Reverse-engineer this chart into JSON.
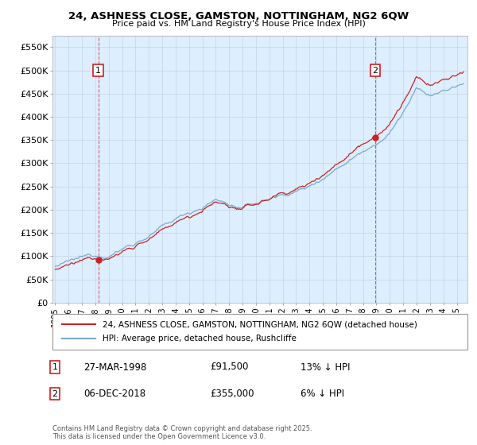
{
  "title1": "24, ASHNESS CLOSE, GAMSTON, NOTTINGHAM, NG2 6QW",
  "title2": "Price paid vs. HM Land Registry's House Price Index (HPI)",
  "sale_year1": 1998.23,
  "sale_year2": 2018.92,
  "sale_price1": 91500,
  "sale_price2": 355000,
  "red_color": "#cc2222",
  "blue_color": "#7aaacc",
  "marker_box_color": "#cc2222",
  "grid_color": "#c8d8e8",
  "plot_bg": "#ddeeff",
  "ylim": [
    0,
    575000
  ],
  "yticks": [
    0,
    50000,
    100000,
    150000,
    200000,
    250000,
    300000,
    350000,
    400000,
    450000,
    500000,
    550000
  ],
  "xlim_start": 1994.8,
  "xlim_end": 2025.8,
  "legend_entry1": "24, ASHNESS CLOSE, GAMSTON, NOTTINGHAM, NG2 6QW (detached house)",
  "legend_entry2": "HPI: Average price, detached house, Rushcliffe",
  "annotation1_label": "1",
  "annotation1_date": "27-MAR-1998",
  "annotation1_price": "£91,500",
  "annotation1_hpi": "13% ↓ HPI",
  "annotation2_label": "2",
  "annotation2_date": "06-DEC-2018",
  "annotation2_price": "£355,000",
  "annotation2_hpi": "6% ↓ HPI",
  "footnote": "Contains HM Land Registry data © Crown copyright and database right 2025.\nThis data is licensed under the Open Government Licence v3.0."
}
